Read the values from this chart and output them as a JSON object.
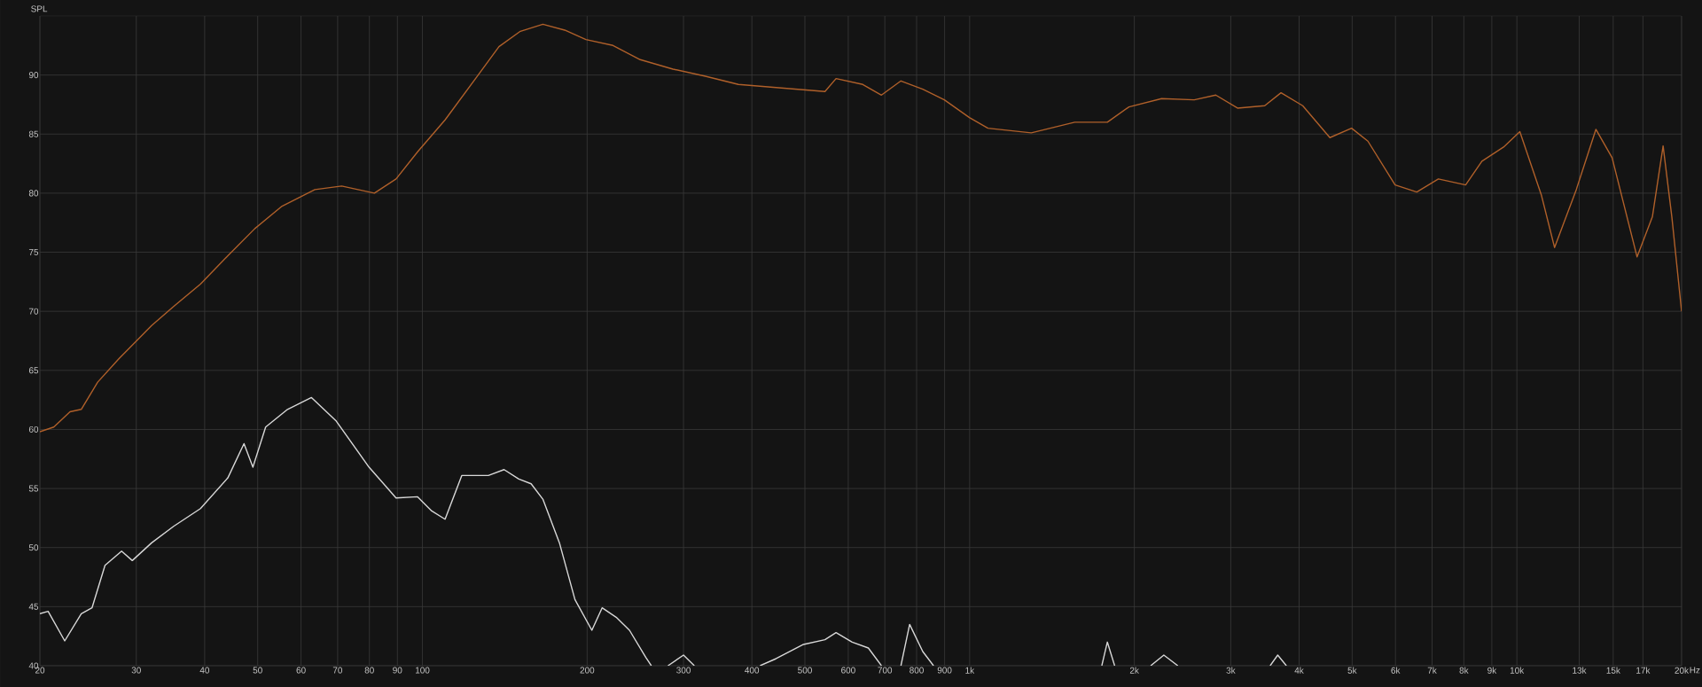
{
  "chart_data": {
    "type": "line",
    "ylabel": "SPL",
    "log": "x",
    "grid": true,
    "marker": "none",
    "line_style": "solid",
    "legend": false,
    "xlim": [
      20,
      20000
    ],
    "ylim": [
      40,
      95
    ],
    "xticks": [
      20,
      30,
      40,
      50,
      60,
      70,
      80,
      90,
      100,
      200,
      300,
      400,
      500,
      600,
      700,
      800,
      900,
      {
        "value": 1000,
        "label": "1k"
      },
      {
        "value": 2000,
        "label": "2k"
      },
      {
        "value": 3000,
        "label": "3k"
      },
      {
        "value": 4000,
        "label": "4k"
      },
      {
        "value": 5000,
        "label": "5k"
      },
      {
        "value": 6000,
        "label": "6k"
      },
      {
        "value": 7000,
        "label": "7k"
      },
      {
        "value": 8000,
        "label": "8k"
      },
      {
        "value": 9000,
        "label": "9k"
      },
      {
        "value": 10000,
        "label": "10k"
      },
      {
        "value": 13000,
        "label": "13k"
      },
      {
        "value": 15000,
        "label": "15k"
      },
      {
        "value": 17000,
        "label": "17k"
      },
      {
        "value": 20000,
        "label": "20k"
      }
    ],
    "xlabel": "Hz",
    "yticks": [
      40,
      45,
      50,
      55,
      60,
      65,
      70,
      75,
      80,
      85,
      90
    ],
    "series": [
      {
        "color": "#b0602a",
        "x": [
          20,
          21.2,
          22.7,
          23.8,
          25.5,
          27.9,
          32.0,
          35.1,
          39.3,
          44.1,
          49.4,
          55.4,
          63.6,
          71.2,
          81.7,
          89.5,
          98,
          110,
          126,
          138,
          151,
          166,
          182,
          199,
          223,
          250,
          287,
          329,
          378,
          453,
          544,
          570,
          638,
          690,
          749,
          821,
          899,
          999,
          1080,
          1296,
          1556,
          1785,
          1955,
          2243,
          2573,
          2817,
          3087,
          3461,
          3707,
          4061,
          4553,
          4988,
          5343,
          5991,
          6563,
          7188,
          8061,
          8632,
          9455,
          10126,
          11092,
          11718,
          12841,
          13945,
          14928,
          16583,
          17687,
          18506,
          19197,
          20000
        ],
        "values": [
          59.8,
          60.2,
          61.5,
          61.7,
          64,
          66,
          68.8,
          70.4,
          72.3,
          74.7,
          77,
          78.9,
          80.3,
          80.6,
          80,
          81.2,
          83.5,
          86.2,
          89.9,
          92.4,
          93.7,
          94.3,
          93.8,
          93,
          92.5,
          91.3,
          90.5,
          89.9,
          89.2,
          88.9,
          88.6,
          89.7,
          89.2,
          88.3,
          89.5,
          88.8,
          87.9,
          86.4,
          85.5,
          85.1,
          86,
          86,
          87.3,
          88,
          87.9,
          88.3,
          87.2,
          87.4,
          88.5,
          87.4,
          84.7,
          85.5,
          84.4,
          80.7,
          80.1,
          81.2,
          80.7,
          82.7,
          83.9,
          85.2,
          79.8,
          75.4,
          80.3,
          85.4,
          83,
          74.6,
          78,
          84,
          78,
          70
        ]
      },
      {
        "color": "#d8d8d8",
        "x": [
          20,
          20.7,
          22.2,
          23.8,
          24.9,
          26.3,
          28.2,
          29.5,
          32.0,
          35.1,
          39.3,
          44.1,
          47.2,
          49.0,
          51.7,
          56.7,
          62.7,
          69.6,
          79.9,
          89.5,
          98,
          104,
          110,
          118,
          132,
          141,
          150,
          158,
          166,
          178,
          190,
          204,
          213,
          226,
          239,
          256,
          262,
          270,
          281,
          300,
          314,
          330,
          414,
          443,
          497,
          544,
          570,
          610,
          653,
          690,
          720,
          749,
          777,
          821,
          859,
          900,
          1744,
          1785,
          1841,
          2000,
          2142,
          2264,
          2401,
          3000,
          3541,
          3656,
          3792
        ],
        "values": [
          44.4,
          44.6,
          42.1,
          44.4,
          44.9,
          48.5,
          49.7,
          48.9,
          50.4,
          51.8,
          53.3,
          55.9,
          58.8,
          56.8,
          60.2,
          61.7,
          62.7,
          60.7,
          56.8,
          54.2,
          54.3,
          53.1,
          52.4,
          56.1,
          56.1,
          56.6,
          55.8,
          55.4,
          54.1,
          50.4,
          45.6,
          43,
          44.9,
          44.1,
          43,
          40.7,
          40,
          null,
          40,
          40.9,
          40,
          null,
          40,
          40.6,
          41.8,
          42.2,
          42.8,
          42,
          41.5,
          40,
          null,
          40,
          43.5,
          41.2,
          40,
          null,
          40,
          42,
          40,
          null,
          40,
          40.9,
          40,
          null,
          40,
          40.9,
          40
        ]
      }
    ]
  }
}
